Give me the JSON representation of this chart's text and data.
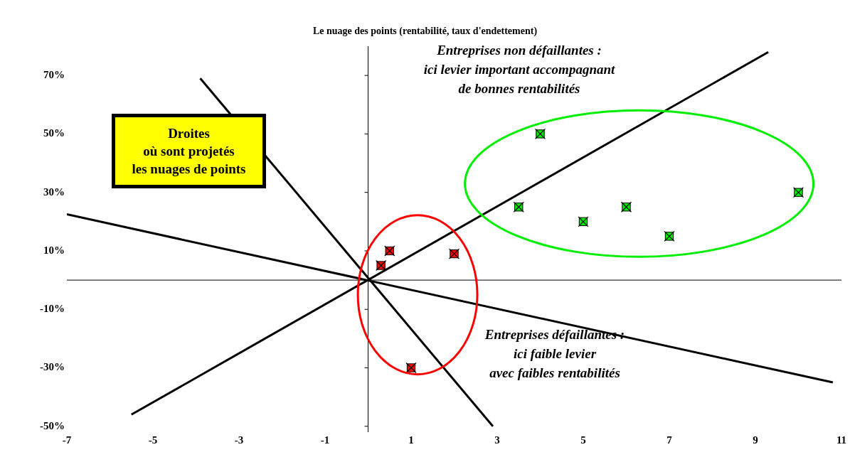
{
  "chart_data": {
    "type": "scatter",
    "title": "Le nuage des points (rentabilité, taux d'endettement)",
    "series": [
      {
        "color": "#00ee00",
        "x": [
          4,
          3.5,
          5,
          6,
          7,
          10
        ],
        "values": [
          50,
          25,
          20,
          25,
          15,
          30
        ]
      },
      {
        "color": "#ff0000",
        "x": [
          0.3,
          0.5,
          2,
          1
        ],
        "values": [
          5,
          10,
          9,
          -30
        ]
      },
      {
        "type": "line",
        "color": "#000000",
        "marker": "none",
        "x": [
          -5.5,
          9.3
        ],
        "values": [
          -46,
          78
        ]
      },
      {
        "type": "line",
        "color": "#000000",
        "marker": "none",
        "x": [
          -3.9,
          2.9
        ],
        "values": [
          69,
          -50
        ]
      },
      {
        "type": "line",
        "color": "#000000",
        "marker": "none",
        "x": [
          -7,
          10.8
        ],
        "values": [
          22.5,
          -35
        ]
      }
    ],
    "xlim": [
      -7,
      11
    ],
    "xticks": [
      -7,
      -5,
      -3,
      -1,
      1,
      3,
      5,
      7,
      9,
      11
    ],
    "ylim": [
      -52,
      80
    ],
    "yticks": [
      {
        "value": -50,
        "label": "-50%"
      },
      {
        "value": -30,
        "label": "-30%"
      },
      {
        "value": -10,
        "label": "-10%"
      },
      {
        "value": 10,
        "label": "10%"
      },
      {
        "value": 30,
        "label": "30%"
      },
      {
        "value": 50,
        "label": "50%"
      },
      {
        "value": 70,
        "label": "70%"
      }
    ],
    "grid": false,
    "legend": false,
    "marker": "square",
    "line_style": "solid",
    "annotations": [
      "Droites\noù sont projetés\nles nuages de points",
      "Entreprises non défaillantes :\nici levier important accompagnant\nde bonnes rentabilités",
      "Entreprises défaillantes :\nici faible levier\navec faibles rentabilités"
    ]
  }
}
